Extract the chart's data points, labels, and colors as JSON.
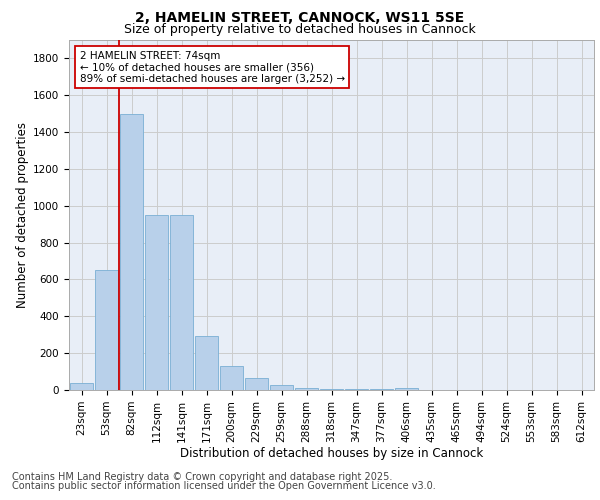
{
  "title1": "2, HAMELIN STREET, CANNOCK, WS11 5SE",
  "title2": "Size of property relative to detached houses in Cannock",
  "xlabel": "Distribution of detached houses by size in Cannock",
  "ylabel": "Number of detached properties",
  "categories": [
    "23sqm",
    "53sqm",
    "82sqm",
    "112sqm",
    "141sqm",
    "171sqm",
    "200sqm",
    "229sqm",
    "259sqm",
    "288sqm",
    "318sqm",
    "347sqm",
    "377sqm",
    "406sqm",
    "435sqm",
    "465sqm",
    "494sqm",
    "524sqm",
    "553sqm",
    "583sqm",
    "612sqm"
  ],
  "values": [
    40,
    650,
    1500,
    950,
    950,
    295,
    130,
    65,
    25,
    10,
    5,
    5,
    5,
    10,
    0,
    0,
    0,
    0,
    0,
    0,
    0
  ],
  "bar_color": "#b8d0ea",
  "bar_edge_color": "#7aafd4",
  "vline_x": 1.5,
  "vline_color": "#cc0000",
  "annotation_text": "2 HAMELIN STREET: 74sqm\n← 10% of detached houses are smaller (356)\n89% of semi-detached houses are larger (3,252) →",
  "annotation_box_color": "#ffffff",
  "annotation_box_edge": "#cc0000",
  "ylim": [
    0,
    1900
  ],
  "yticks": [
    0,
    200,
    400,
    600,
    800,
    1000,
    1200,
    1400,
    1600,
    1800
  ],
  "grid_color": "#cccccc",
  "bg_color": "#e8eef7",
  "footer1": "Contains HM Land Registry data © Crown copyright and database right 2025.",
  "footer2": "Contains public sector information licensed under the Open Government Licence v3.0.",
  "title_fontsize": 10,
  "subtitle_fontsize": 9,
  "axis_fontsize": 8.5,
  "tick_fontsize": 7.5,
  "footer_fontsize": 7,
  "annot_fontsize": 7.5
}
